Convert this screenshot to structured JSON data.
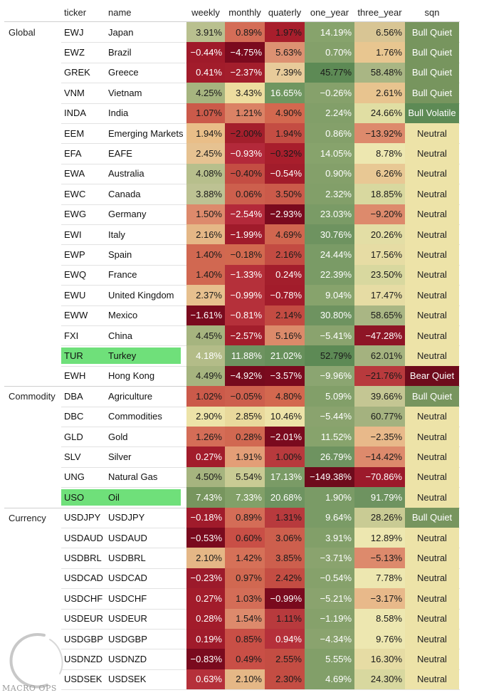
{
  "columns": [
    "ticker",
    "name",
    "weekly",
    "monthly",
    "quaterly",
    "one_year",
    "three_year",
    "sqn"
  ],
  "groups": [
    {
      "label": "Global",
      "rows": [
        {
          "ticker": "EWJ",
          "name": "Japan",
          "highlight": false,
          "values": [
            "3.91%",
            "0.89%",
            "1.97%",
            "14.19%",
            "6.56%"
          ],
          "colors": [
            "#b9c08f",
            "#d46d57",
            "#a81e2c",
            "#87a36c",
            "#d8c594"
          ],
          "sqn": "Bull Quiet",
          "sqn_color": "#77955e",
          "sqn_text": "#ffffff"
        },
        {
          "ticker": "EWZ",
          "name": "Brazil",
          "highlight": false,
          "values": [
            "−0.44%",
            "−4.75%",
            "5.63%",
            "0.70%",
            "1.76%"
          ],
          "colors": [
            "#9f1a2a",
            "#7b0a1e",
            "#dd9172",
            "#84a06a",
            "#e8c690"
          ],
          "sqn": "Bull Quiet",
          "sqn_color": "#77955e",
          "sqn_text": "#ffffff"
        },
        {
          "ticker": "GREK",
          "name": "Greece",
          "highlight": false,
          "values": [
            "0.41%",
            "−2.37%",
            "7.39%",
            "45.77%",
            "58.48%"
          ],
          "colors": [
            "#a21c2b",
            "#a31e2c",
            "#e8cb9a",
            "#5d8a55",
            "#a9b684"
          ],
          "sqn": "Bull Quiet",
          "sqn_color": "#77955e",
          "sqn_text": "#ffffff"
        },
        {
          "ticker": "VNM",
          "name": "Vietnam",
          "highlight": false,
          "values": [
            "4.25%",
            "3.43%",
            "16.65%",
            "−0.26%",
            "2.61%"
          ],
          "colors": [
            "#a6b47f",
            "#eddd9f",
            "#6f9660",
            "#86a16b",
            "#e8c48f"
          ],
          "sqn": "Bull Quiet",
          "sqn_color": "#77955e",
          "sqn_text": "#ffffff"
        },
        {
          "ticker": "INDA",
          "name": "India",
          "highlight": false,
          "values": [
            "1.07%",
            "1.21%",
            "4.90%",
            "2.24%",
            "24.66%"
          ],
          "colors": [
            "#cb5a4a",
            "#db8265",
            "#d3684f",
            "#829f69",
            "#e0dea3"
          ],
          "sqn": "Bull Volatile",
          "sqn_color": "#5d8a55",
          "sqn_text": "#ffffff"
        },
        {
          "ticker": "EEM",
          "name": "Emerging Markets",
          "highlight": false,
          "values": [
            "1.94%",
            "−2.00%",
            "1.94%",
            "0.86%",
            "−13.92%"
          ],
          "colors": [
            "#e9be88",
            "#a41f2c",
            "#c44d43",
            "#84a06a",
            "#dd8a6c"
          ],
          "sqn": "Neutral",
          "sqn_color": "#ede3a8",
          "sqn_text": "#222222"
        },
        {
          "ticker": "EFA",
          "name": "EAFE",
          "highlight": false,
          "values": [
            "2.45%",
            "−0.93%",
            "−0.32%",
            "14.05%",
            "8.78%"
          ],
          "colors": [
            "#e6c291",
            "#b3293a",
            "#a81e2c",
            "#87a36c",
            "#ede7b0"
          ],
          "sqn": "Neutral",
          "sqn_color": "#ede3a8",
          "sqn_text": "#222222"
        },
        {
          "ticker": "EWA",
          "name": "Australia",
          "highlight": false,
          "values": [
            "4.08%",
            "−0.40%",
            "−0.54%",
            "0.90%",
            "6.26%"
          ],
          "colors": [
            "#b7bf8c",
            "#c44d43",
            "#a21c2b",
            "#84a06a",
            "#e8c894"
          ],
          "sqn": "Neutral",
          "sqn_color": "#ede3a8",
          "sqn_text": "#222222"
        },
        {
          "ticker": "EWC",
          "name": "Canada",
          "highlight": false,
          "values": [
            "3.88%",
            "0.06%",
            "3.50%",
            "2.32%",
            "18.85%"
          ],
          "colors": [
            "#bdc293",
            "#cd5f4d",
            "#cb5a4a",
            "#829f69",
            "#d8d89f"
          ],
          "sqn": "Neutral",
          "sqn_color": "#ede3a8",
          "sqn_text": "#222222"
        },
        {
          "ticker": "EWG",
          "name": "Germany",
          "highlight": false,
          "values": [
            "1.50%",
            "−2.54%",
            "−2.93%",
            "23.03%",
            "−9.20%"
          ],
          "colors": [
            "#dd8a6c",
            "#b3293a",
            "#7a0a1e",
            "#7a9b66",
            "#dd8a6c"
          ],
          "sqn": "Neutral",
          "sqn_color": "#ede3a8",
          "sqn_text": "#222222"
        },
        {
          "ticker": "EWI",
          "name": "Italy",
          "highlight": false,
          "values": [
            "2.16%",
            "−1.99%",
            "4.69%",
            "30.76%",
            "20.26%"
          ],
          "colors": [
            "#e5b786",
            "#a01b2b",
            "#d1664f",
            "#6e9360",
            "#e3dea5"
          ],
          "sqn": "Neutral",
          "sqn_color": "#ede3a8",
          "sqn_text": "#222222"
        },
        {
          "ticker": "EWP",
          "name": "Spain",
          "highlight": false,
          "values": [
            "1.40%",
            "−0.18%",
            "2.16%",
            "24.44%",
            "17.56%"
          ],
          "colors": [
            "#d16851",
            "#d2694f",
            "#c34b42",
            "#7a9b66",
            "#e6dca4"
          ],
          "sqn": "Neutral",
          "sqn_color": "#ede3a8",
          "sqn_text": "#222222"
        },
        {
          "ticker": "EWQ",
          "name": "France",
          "highlight": false,
          "values": [
            "1.40%",
            "−1.33%",
            "0.24%",
            "22.39%",
            "23.50%"
          ],
          "colors": [
            "#d16851",
            "#b5303a",
            "#a31e2c",
            "#7a9b66",
            "#d8d89f"
          ],
          "sqn": "Neutral",
          "sqn_color": "#ede3a8",
          "sqn_text": "#222222"
        },
        {
          "ticker": "EWU",
          "name": "United Kingdom",
          "highlight": false,
          "values": [
            "2.37%",
            "−0.99%",
            "−0.78%",
            "9.04%",
            "17.47%"
          ],
          "colors": [
            "#e7c08e",
            "#b5303a",
            "#a21c2b",
            "#87a36c",
            "#e6dca4"
          ],
          "sqn": "Neutral",
          "sqn_color": "#ede3a8",
          "sqn_text": "#222222"
        },
        {
          "ticker": "EWW",
          "name": "Mexico",
          "highlight": false,
          "values": [
            "−1.61%",
            "−0.81%",
            "2.14%",
            "30.80%",
            "58.65%"
          ],
          "colors": [
            "#7a0a1e",
            "#b5303a",
            "#c34b42",
            "#6e9360",
            "#a9b684"
          ],
          "sqn": "Neutral",
          "sqn_color": "#ede3a8",
          "sqn_text": "#222222"
        },
        {
          "ticker": "FXI",
          "name": "China",
          "highlight": false,
          "values": [
            "4.45%",
            "−2.57%",
            "5.16%",
            "−5.41%",
            "−47.28%"
          ],
          "colors": [
            "#a6b47f",
            "#a31e2c",
            "#dc8a6a",
            "#8aa36e",
            "#8e1526"
          ],
          "sqn": "Neutral",
          "sqn_color": "#ede3a8",
          "sqn_text": "#222222"
        },
        {
          "ticker": "TUR",
          "name": "Turkey",
          "highlight": true,
          "values": [
            "4.18%",
            "11.88%",
            "21.02%",
            "52.79%",
            "62.01%"
          ],
          "colors": [
            "#b3bc88",
            "#6e9360",
            "#67905b",
            "#5d8a55",
            "#a4b27f"
          ],
          "sqn": "Neutral",
          "sqn_color": "#ede3a8",
          "sqn_text": "#222222"
        },
        {
          "ticker": "EWH",
          "name": "Hong Kong",
          "highlight": false,
          "values": [
            "4.49%",
            "−4.92%",
            "−3.57%",
            "−9.96%",
            "−21.76%"
          ],
          "colors": [
            "#a6b47f",
            "#760a1d",
            "#7a0a1e",
            "#8ba571",
            "#b83a3d"
          ],
          "sqn": "Bear Quiet",
          "sqn_color": "#6e0b1c",
          "sqn_text": "#ffffff"
        }
      ]
    },
    {
      "label": "Commodity",
      "rows": [
        {
          "ticker": "DBA",
          "name": "Agriculture",
          "highlight": false,
          "values": [
            "1.02%",
            "−0.05%",
            "4.80%",
            "5.09%",
            "39.66%"
          ],
          "colors": [
            "#cb5a4a",
            "#cd5f4d",
            "#d3684f",
            "#829f69",
            "#c4c693"
          ],
          "sqn": "Bull Quiet",
          "sqn_color": "#77955e",
          "sqn_text": "#ffffff"
        },
        {
          "ticker": "DBC",
          "name": "Commodities",
          "highlight": false,
          "values": [
            "2.90%",
            "2.85%",
            "10.46%",
            "−5.44%",
            "60.77%"
          ],
          "colors": [
            "#ede3a8",
            "#e9d99c",
            "#ede3a8",
            "#8aa36e",
            "#a4b27f"
          ],
          "sqn": "Neutral",
          "sqn_color": "#ede3a8",
          "sqn_text": "#222222"
        },
        {
          "ticker": "GLD",
          "name": "Gold",
          "highlight": false,
          "values": [
            "1.26%",
            "0.28%",
            "−2.01%",
            "11.52%",
            "−2.35%"
          ],
          "colors": [
            "#d46d57",
            "#d16851",
            "#7a0a1e",
            "#87a36c",
            "#e8b98a"
          ],
          "sqn": "Neutral",
          "sqn_color": "#ede3a8",
          "sqn_text": "#222222"
        },
        {
          "ticker": "SLV",
          "name": "Silver",
          "highlight": false,
          "values": [
            "0.27%",
            "1.91%",
            "1.00%",
            "26.79%",
            "−14.42%"
          ],
          "colors": [
            "#a21c2b",
            "#e39e77",
            "#b83a3d",
            "#6e9360",
            "#dd8a6c"
          ],
          "sqn": "Neutral",
          "sqn_color": "#ede3a8",
          "sqn_text": "#222222"
        },
        {
          "ticker": "UNG",
          "name": "Natural Gas",
          "highlight": false,
          "values": [
            "4.50%",
            "5.54%",
            "17.13%",
            "−149.38%",
            "−70.86%"
          ],
          "colors": [
            "#a6b47f",
            "#c9cb94",
            "#7a9b66",
            "#6e0b1c",
            "#9c1a2b"
          ],
          "sqn": "Neutral",
          "sqn_color": "#ede3a8",
          "sqn_text": "#222222"
        },
        {
          "ticker": "USO",
          "name": "Oil",
          "highlight": true,
          "values": [
            "7.43%",
            "7.33%",
            "20.68%",
            "1.90%",
            "91.79%"
          ],
          "colors": [
            "#77955e",
            "#82a068",
            "#6e9360",
            "#7a9b66",
            "#6e9360"
          ],
          "sqn": "Neutral",
          "sqn_color": "#ede3a8",
          "sqn_text": "#222222"
        }
      ]
    },
    {
      "label": "Currency",
      "rows": [
        {
          "ticker": "USDJPY",
          "name": "USDJPY",
          "highlight": false,
          "values": [
            "−0.18%",
            "0.89%",
            "1.31%",
            "9.64%",
            "28.26%"
          ],
          "colors": [
            "#a01b2b",
            "#d46d57",
            "#b83a3d",
            "#7a9b66",
            "#c9cb94"
          ],
          "sqn": "Bull Quiet",
          "sqn_color": "#77955e",
          "sqn_text": "#ffffff"
        },
        {
          "ticker": "USDAUD",
          "name": "USDAUD",
          "highlight": false,
          "values": [
            "−0.53%",
            "0.60%",
            "3.06%",
            "3.91%",
            "12.89%"
          ],
          "colors": [
            "#7a0a1e",
            "#c94f46",
            "#cd5f4d",
            "#829f69",
            "#ede7b0"
          ],
          "sqn": "Neutral",
          "sqn_color": "#ede3a8",
          "sqn_text": "#222222"
        },
        {
          "ticker": "USDBRL",
          "name": "USDBRL",
          "highlight": false,
          "values": [
            "2.10%",
            "1.42%",
            "3.85%",
            "−3.71%",
            "−5.13%"
          ],
          "colors": [
            "#e5b786",
            "#d67158",
            "#cd5f4d",
            "#8aa36e",
            "#dd8a6c"
          ],
          "sqn": "Neutral",
          "sqn_color": "#ede3a8",
          "sqn_text": "#222222"
        },
        {
          "ticker": "USDCAD",
          "name": "USDCAD",
          "highlight": false,
          "values": [
            "−0.23%",
            "0.97%",
            "2.42%",
            "−0.54%",
            "7.78%"
          ],
          "colors": [
            "#9c1a2b",
            "#d16851",
            "#c44d43",
            "#86a16b",
            "#ede7b0"
          ],
          "sqn": "Neutral",
          "sqn_color": "#ede3a8",
          "sqn_text": "#222222"
        },
        {
          "ticker": "USDCHF",
          "name": "USDCHF",
          "highlight": false,
          "values": [
            "0.27%",
            "1.03%",
            "−0.99%",
            "−5.21%",
            "−3.17%"
          ],
          "colors": [
            "#a21c2b",
            "#d46d57",
            "#7a0a1e",
            "#8aa36e",
            "#e8b98a"
          ],
          "sqn": "Neutral",
          "sqn_color": "#ede3a8",
          "sqn_text": "#222222"
        },
        {
          "ticker": "USDEUR",
          "name": "USDEUR",
          "highlight": false,
          "values": [
            "0.28%",
            "1.54%",
            "1.11%",
            "−1.19%",
            "8.58%"
          ],
          "colors": [
            "#a21c2b",
            "#dd8a6c",
            "#b83a3d",
            "#86a16b",
            "#ede7b0"
          ],
          "sqn": "Neutral",
          "sqn_color": "#ede3a8",
          "sqn_text": "#222222"
        },
        {
          "ticker": "USDGBP",
          "name": "USDGBP",
          "highlight": false,
          "values": [
            "0.19%",
            "0.85%",
            "0.94%",
            "−4.34%",
            "9.76%"
          ],
          "colors": [
            "#a01b2b",
            "#c94f46",
            "#b5303a",
            "#8aa36e",
            "#ede7b0"
          ],
          "sqn": "Neutral",
          "sqn_color": "#ede3a8",
          "sqn_text": "#222222"
        },
        {
          "ticker": "USDNZD",
          "name": "USDNZD",
          "highlight": false,
          "values": [
            "−0.83%",
            "0.49%",
            "2.55%",
            "5.55%",
            "16.30%"
          ],
          "colors": [
            "#7a0a1e",
            "#c94f46",
            "#c44d43",
            "#829f69",
            "#e6dca4"
          ],
          "sqn": "Neutral",
          "sqn_color": "#ede3a8",
          "sqn_text": "#222222"
        },
        {
          "ticker": "USDSEK",
          "name": "USDSEK",
          "highlight": false,
          "values": [
            "0.63%",
            "2.10%",
            "2.30%",
            "4.69%",
            "24.30%"
          ],
          "colors": [
            "#b5303a",
            "#e5b786",
            "#c44d43",
            "#829f69",
            "#d8d89f"
          ],
          "sqn": "Neutral",
          "sqn_color": "#ede3a8",
          "sqn_text": "#222222"
        }
      ]
    }
  ],
  "logo": {
    "text": "MACRO OPS"
  }
}
